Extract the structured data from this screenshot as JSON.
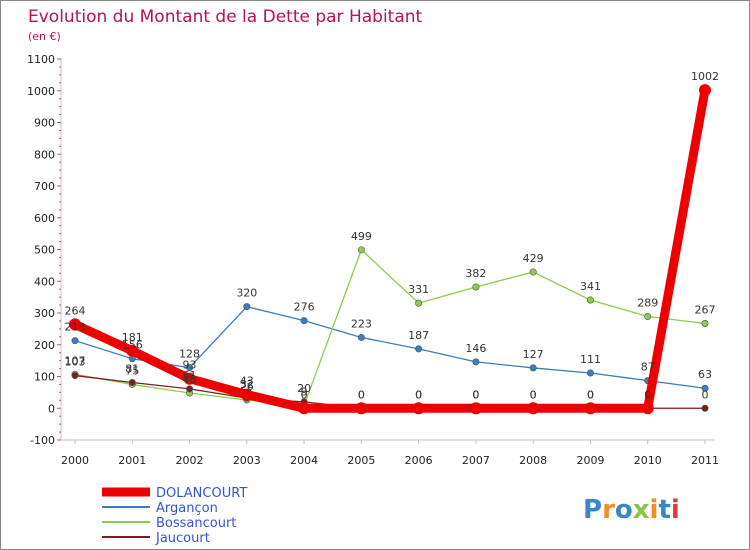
{
  "chart_data": {
    "type": "line",
    "title": "Evolution du Montant de la Dette par Habitant",
    "subtitle": "(en €)",
    "ylim": [
      -100,
      1100
    ],
    "yticks": [
      -100,
      0,
      100,
      200,
      300,
      400,
      500,
      600,
      700,
      800,
      900,
      1000,
      1100
    ],
    "x": [
      "2000",
      "2001",
      "2002",
      "2003",
      "2004",
      "2005",
      "2006",
      "2007",
      "2008",
      "2009",
      "2010",
      "2011"
    ],
    "grid": false,
    "legend_position": "bottom-left",
    "series": [
      {
        "name": "DOLANCOURT",
        "color": "#ee0000",
        "values": [
          264,
          181,
          93,
          43,
          0,
          0,
          0,
          0,
          0,
          0,
          0,
          1002
        ]
      },
      {
        "name": "Argançon",
        "color": "#3a7dc0",
        "values": [
          213,
          156,
          128,
          320,
          276,
          223,
          187,
          146,
          127,
          111,
          87,
          63
        ]
      },
      {
        "name": "Bossancourt",
        "color": "#8ccc4c",
        "values": [
          107,
          75,
          48,
          26,
          9,
          499,
          331,
          382,
          429,
          341,
          289,
          267
        ]
      },
      {
        "name": "Jaucourt",
        "color": "#7a1f1f",
        "values": [
          103,
          81,
          61,
          32,
          20,
          0,
          0,
          0,
          0,
          0,
          0,
          0
        ]
      }
    ]
  },
  "logo": {
    "text": "Proxiti",
    "colors": [
      "#3a86c8",
      "#f28c28",
      "#3a86c8",
      "#8bc34a",
      "#f28c28",
      "#3a86c8",
      "#e53935"
    ]
  }
}
